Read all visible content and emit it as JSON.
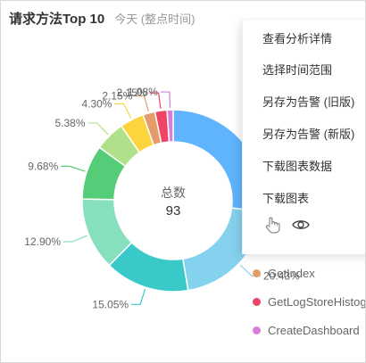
{
  "header": {
    "title": "请求方法Top 10",
    "subtitle": "今天 (整点时间)"
  },
  "center": {
    "label": "总数",
    "value": "93"
  },
  "menu": {
    "items": [
      "查看分析详情",
      "选择时间范围",
      "另存为告警 (旧版)",
      "另存为告警 (新版)",
      "下载图表数据",
      "下载图表"
    ]
  },
  "legend": [
    {
      "name": "GetIndex",
      "color": "#e39c6a"
    },
    {
      "name": "GetLogStoreHistogram",
      "color": "#ee4466"
    },
    {
      "name": "CreateDashboard",
      "color": "#d77fd7"
    }
  ],
  "chart_data": {
    "type": "pie",
    "style": "donut",
    "title": "请求方法Top 10",
    "total": 93,
    "slices": [
      {
        "name": "",
        "value": 27.0,
        "label": "",
        "color": "#5fb4fd"
      },
      {
        "name": "",
        "value": 20.43,
        "label": "20.43%",
        "color": "#85d2ee"
      },
      {
        "name": "",
        "value": 15.05,
        "label": "15.05%",
        "color": "#3ac9c9"
      },
      {
        "name": "",
        "value": 12.9,
        "label": "12.90%",
        "color": "#86e0bd"
      },
      {
        "name": "",
        "value": 9.68,
        "label": "9.68%",
        "color": "#55cc77"
      },
      {
        "name": "",
        "value": 5.38,
        "label": "5.38%",
        "color": "#b0e18a"
      },
      {
        "name": "",
        "value": 4.3,
        "label": "4.30%",
        "color": "#fcd43d"
      },
      {
        "name": "GetIndex",
        "value": 2.15,
        "label": "2.15%",
        "color": "#e39c6a"
      },
      {
        "name": "GetLogStoreHistogram",
        "value": 2.15,
        "label": "2.15%",
        "color": "#ee4466"
      },
      {
        "name": "CreateDashboard",
        "value": 1.08,
        "label": "1.08%",
        "color": "#d77fd7"
      }
    ]
  }
}
